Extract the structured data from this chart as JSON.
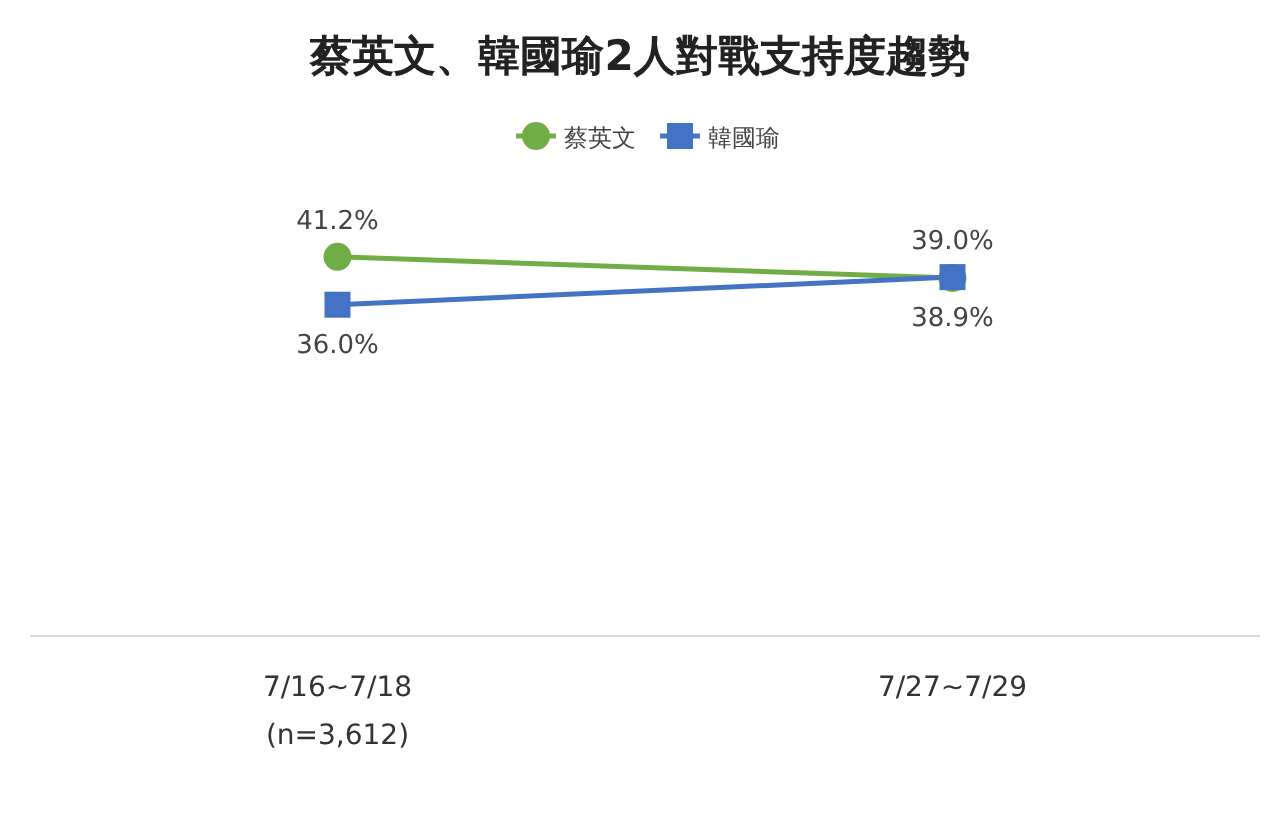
{
  "chart_data": {
    "type": "line",
    "title": "蔡英文、韓國瑜2人對戰支持度趨勢",
    "categories": [
      "7/16~7/18\n(n=3,612)",
      "7/27~7/29"
    ],
    "series": [
      {
        "name": "蔡英文",
        "color": "#70ad47",
        "marker": "circle",
        "values": [
          41.2,
          38.9
        ],
        "value_labels": [
          "41.2%",
          "38.9%"
        ]
      },
      {
        "name": "韓國瑜",
        "color": "#4472c4",
        "marker": "square",
        "values": [
          36.0,
          39.0
        ],
        "value_labels": [
          "36.0%",
          "39.0%"
        ]
      }
    ],
    "legend": "top"
  }
}
